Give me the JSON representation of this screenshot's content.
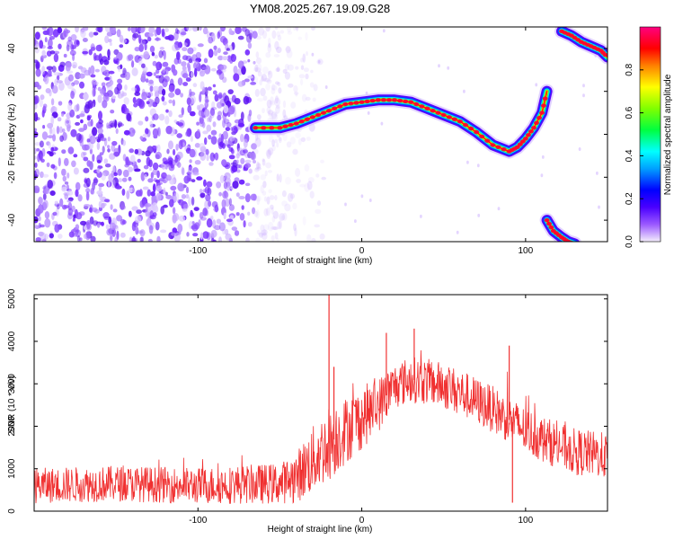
{
  "title": "YM08.2025.267.19.09.G28",
  "chart_data": [
    {
      "type": "heatmap",
      "name": "spectrogram",
      "xlabel": "Height of straight line (km)",
      "ylabel": "Frequency (Hz)",
      "xlim": [
        -200,
        150
      ],
      "ylim": [
        -50,
        50
      ],
      "xticks": [
        -100,
        0,
        100
      ],
      "yticks": [
        -40,
        -20,
        0,
        20,
        40
      ],
      "colorbar": {
        "label": "Normalized spectral amplitude",
        "range": [
          0,
          1
        ],
        "ticks": [
          "0.0",
          "0.2",
          "0.4",
          "0.6",
          "0.8"
        ]
      },
      "ridge": {
        "x": [
          -65,
          -50,
          -40,
          -30,
          -20,
          -10,
          0,
          10,
          20,
          30,
          40,
          50,
          60,
          70,
          80,
          90,
          95,
          100,
          105,
          110,
          113
        ],
        "y": [
          3,
          3,
          5,
          8,
          11,
          14,
          15,
          16,
          16,
          15,
          12,
          9,
          6,
          1,
          -5,
          -8,
          -6,
          -2,
          3,
          10,
          20
        ]
      },
      "ridge_upper_alias": {
        "x": [
          122,
          128,
          134,
          140,
          146,
          150
        ],
        "y": [
          48,
          46,
          43,
          41,
          39,
          36
        ]
      },
      "ridge_lower_alias": {
        "x": [
          113,
          117,
          122,
          126,
          130
        ],
        "y": [
          -40,
          -45,
          -48,
          -50,
          -51
        ]
      },
      "noise_extent_x": [
        -200,
        -45
      ]
    },
    {
      "type": "line",
      "name": "snr",
      "xlabel": "Height of straight line (km)",
      "ylabel": "SNR (10 * v/v)",
      "xlim": [
        -200,
        150
      ],
      "ylim": [
        0,
        5100
      ],
      "xticks": [
        -100,
        0,
        100
      ],
      "yticks": [
        0,
        1000,
        2000,
        3000,
        4000,
        5000
      ],
      "color": "#f03030",
      "envelope_x": [
        -200,
        -150,
        -100,
        -50,
        -40,
        -30,
        -20,
        -10,
        0,
        10,
        20,
        30,
        40,
        50,
        60,
        70,
        80,
        90,
        100,
        110,
        120,
        130,
        140,
        150
      ],
      "envelope_mean": [
        600,
        650,
        600,
        650,
        800,
        1200,
        1600,
        1900,
        2200,
        2500,
        2950,
        3100,
        3050,
        2950,
        2800,
        2600,
        2400,
        2150,
        1900,
        1700,
        1550,
        1400,
        1350,
        1300
      ],
      "envelope_spread": [
        420,
        420,
        430,
        480,
        600,
        800,
        900,
        800,
        750,
        650,
        550,
        550,
        550,
        550,
        550,
        550,
        550,
        550,
        550,
        550,
        550,
        550,
        550,
        550
      ],
      "spikes": [
        {
          "x": -20,
          "y": 5100
        },
        {
          "x": -17,
          "y": 3400
        },
        {
          "x": 15,
          "y": 4200
        },
        {
          "x": 32,
          "y": 4300
        },
        {
          "x": 90,
          "y": 3900
        },
        {
          "x": 92,
          "y": 200
        }
      ]
    }
  ]
}
